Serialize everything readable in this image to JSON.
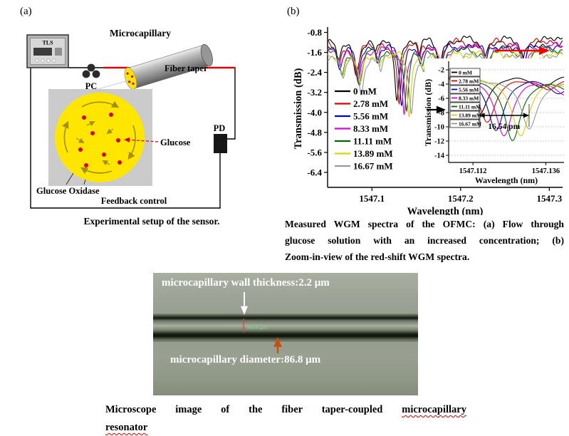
{
  "panel_a": {
    "label": "(a)",
    "caption": "Experimental setup of the sensor.",
    "labels": {
      "tls": "TLS",
      "pc": "PC",
      "microcapillary": "Microcapillary",
      "fiber_taper": "Fiber taper",
      "glucose": "Glucose",
      "pd": "PD",
      "glucose_oxidase": "Glucose Oxidase",
      "feedback_control": "Feedback control"
    }
  },
  "panel_b": {
    "label": "(b)",
    "caption_lines": [
      "Measured WGM spectra of the OFMC: (a) Flow through",
      "glucose solution with an increased concentration; (b)",
      "Zoom-in-view of the red-shift WGM spectra."
    ]
  },
  "chart_data": [
    {
      "id": "main-spectra",
      "type": "line",
      "title": "",
      "xlabel": "Wavelength (nm)",
      "ylabel": "Transmission (dB)",
      "xlim": [
        1547.05,
        1547.315
      ],
      "ylim": [
        -7.0,
        -0.7
      ],
      "xticks": [
        1547.1,
        1547.2,
        1547.3
      ],
      "xtick_labels": [
        "1547.1",
        "1547.2",
        "1547.3"
      ],
      "yticks": [
        -0.8,
        -1.6,
        -2.4,
        -3.2,
        -4.0,
        -4.8,
        -5.6,
        -6.4
      ],
      "ytick_labels": [
        "-0.8",
        "-1.6",
        "-2.4",
        "-3.2",
        "-4.0",
        "-4.8",
        "-5.6",
        "-6.4"
      ],
      "legend_position": "inside-left",
      "grid": false,
      "red_shift_arrow_color": "#ee0000",
      "series": [
        {
          "name": "0 mM",
          "color": "#000000",
          "baseline": -1.1,
          "shift_pm": 0,
          "main_dip_depth": 2.35
        },
        {
          "name": "2.78 mM",
          "color": "#dd0000",
          "baseline": -1.2,
          "shift_pm": 2.7,
          "main_dip_depth": 2.45
        },
        {
          "name": "5.56 mM",
          "color": "#0000cc",
          "baseline": -1.3,
          "shift_pm": 5.5,
          "main_dip_depth": 2.5
        },
        {
          "name": "8.33 mM",
          "color": "#dd00dd",
          "baseline": -1.4,
          "shift_pm": 8.3,
          "main_dip_depth": 2.55
        },
        {
          "name": "11.11 mM",
          "color": "#006600",
          "baseline": -1.5,
          "shift_pm": 11.1,
          "main_dip_depth": 2.55
        },
        {
          "name": "13.89 mM",
          "color": "#d6d600",
          "baseline": -1.6,
          "shift_pm": 13.9,
          "main_dip_depth": 2.5
        },
        {
          "name": "16.67 mM",
          "color": "#999999",
          "baseline": -1.75,
          "shift_pm": 16.5,
          "main_dip_depth": 2.3
        }
      ],
      "dips": [
        {
          "center": 1547.062,
          "width": 0.0032,
          "depth": 0.85
        },
        {
          "center": 1547.082,
          "width": 0.0035,
          "depth": 1.35
        },
        {
          "center": 1547.104,
          "width": 0.002,
          "depth": 0.5
        },
        {
          "center": 1547.128,
          "width": 0.0028,
          "main": true
        },
        {
          "center": 1547.153,
          "width": 0.002,
          "depth": 0.55
        },
        {
          "center": 1547.176,
          "width": 0.003,
          "depth": 1.05
        },
        {
          "center": 1547.227,
          "width": 0.0028,
          "depth": 0.7
        },
        {
          "center": 1547.27,
          "width": 0.003,
          "depth": 0.85
        }
      ]
    },
    {
      "id": "inset-zoom",
      "type": "line",
      "title": "",
      "xlabel": "Wavelength (nm)",
      "ylabel": "Transmission (dB)",
      "xlim": [
        1547.104,
        1547.142
      ],
      "ylim": [
        -15,
        -1
      ],
      "xticks": [
        1547.112,
        1547.136
      ],
      "xtick_labels": [
        "1547.112",
        "1547.136"
      ],
      "yticks": [
        -2,
        -4,
        -6,
        -8,
        -10,
        -12,
        -14
      ],
      "ytick_labels": [
        "-2",
        "-4",
        "-6",
        "-8",
        "-10",
        "-12",
        "-14"
      ],
      "legend_position": "inside-left",
      "grid": "dotted-horizontal",
      "annotation": "16.54 pm",
      "series": [
        {
          "name": "0 mM",
          "color": "#000000",
          "baseline": -2.6,
          "dip_center": 1547.114,
          "min_db": -8.2
        },
        {
          "name": "2.78 mM",
          "color": "#dd0000",
          "baseline": -2.7,
          "dip_center": 1547.1168,
          "min_db": -9.3
        },
        {
          "name": "5.56 mM",
          "color": "#0000cc",
          "baseline": -2.8,
          "dip_center": 1547.1195,
          "min_db": -10.4
        },
        {
          "name": "8.33 mM",
          "color": "#dd00dd",
          "baseline": -2.9,
          "dip_center": 1547.1223,
          "min_db": -11.2
        },
        {
          "name": "11.11 mM",
          "color": "#006600",
          "baseline": -3.0,
          "dip_center": 1547.125,
          "min_db": -11.8
        },
        {
          "name": "13.89 mM",
          "color": "#d6d600",
          "baseline": -3.1,
          "dip_center": 1547.1278,
          "min_db": -11.2
        },
        {
          "name": "16.67 mM",
          "color": "#999999",
          "baseline": -3.2,
          "dip_center": 1547.1305,
          "min_db": -10.2
        }
      ]
    }
  ],
  "microscope": {
    "wall_text": "microcapillary wall thickness:2.2 μm",
    "diameter_text": "microcapillary diameter:86.8 μm",
    "measure_text": "86.8 μm"
  },
  "bottom_caption": {
    "part1": "Microscope image of the fiber taper-coupled ",
    "wavy1": "microcapillary",
    "wavy2": "resonator"
  }
}
